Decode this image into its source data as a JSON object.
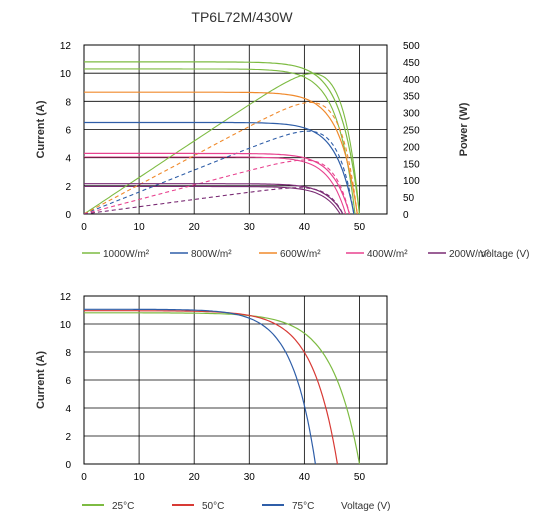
{
  "page": {
    "title": "TP6L72M/430W"
  },
  "chart_data": [
    {
      "type": "line",
      "title": "TP6L72M/430W",
      "xlabel": "Voltage (V)",
      "ylabel": "Current (A)",
      "y2label": "Power (W)",
      "xlim": [
        0,
        55
      ],
      "ylim": [
        0,
        12
      ],
      "y2lim": [
        0,
        500
      ],
      "xticks": [
        "0",
        "10",
        "20",
        "30",
        "40",
        "50"
      ],
      "yticks": [
        "0",
        "2",
        "4",
        "6",
        "8",
        "10",
        "12"
      ],
      "y2ticks": [
        "0",
        "50",
        "100",
        "150",
        "200",
        "250",
        "300",
        "350",
        "400",
        "450",
        "500"
      ],
      "grid": true,
      "legend_position": "bottom",
      "series": [
        {
          "name": "1000W/m²",
          "color": "#7dbb42",
          "isc": 10.8,
          "voc": 50.0,
          "vmp": 41.2,
          "imp": 10.44
        },
        {
          "name": "800W/m²",
          "color": "#2f5ea8",
          "isc": 6.5,
          "voc": 49.0,
          "vmp": 41.5,
          "imp": 6.2
        },
        {
          "name": "600W/m²",
          "color": "#f08a2c",
          "isc": 8.65,
          "voc": 49.6,
          "vmp": 41.4,
          "imp": 8.3
        },
        {
          "name": "400W/m²",
          "color": "#e8428f",
          "isc": 4.3,
          "voc": 48.2,
          "vmp": 41.8,
          "imp": 4.05
        },
        {
          "name": "200W/m²",
          "color": "#7a2b74",
          "isc": 2.15,
          "voc": 47.0,
          "vmp": 41.0,
          "imp": 2.0
        }
      ],
      "extra_curves": [
        {
          "color": "#7dbb42",
          "isc": 10.3,
          "voc": 49.2
        },
        {
          "color": "#e8428f",
          "isc": 4.05,
          "voc": 47.5
        },
        {
          "color": "#7a2b74",
          "isc": 1.95,
          "voc": 46.5
        }
      ]
    },
    {
      "type": "line",
      "xlabel": "Voltage (V)",
      "ylabel": "Current (A)",
      "xlim": [
        0,
        55
      ],
      "ylim": [
        0,
        12
      ],
      "xticks": [
        "0",
        "10",
        "20",
        "30",
        "40",
        "50"
      ],
      "yticks": [
        "0",
        "2",
        "4",
        "6",
        "8",
        "10",
        "12"
      ],
      "grid": true,
      "legend_position": "bottom",
      "series": [
        {
          "name": "25°C",
          "color": "#7dbb42",
          "isc": 10.8,
          "voc": 50.0,
          "knee": 0.1
        },
        {
          "name": "50°C",
          "color": "#d83a35",
          "isc": 10.95,
          "voc": 46.0,
          "knee": 0.1
        },
        {
          "name": "75°C",
          "color": "#2f5ea8",
          "isc": 11.05,
          "voc": 42.0,
          "knee": 0.1
        }
      ]
    }
  ]
}
